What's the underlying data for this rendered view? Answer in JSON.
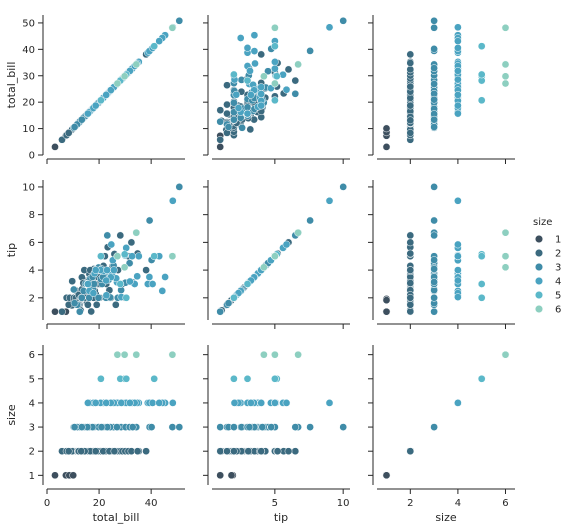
{
  "chart_data": {
    "type": "scatter",
    "variables": [
      "total_bill",
      "tip",
      "size"
    ],
    "hue": "size",
    "legend": {
      "title": "size",
      "position": "right",
      "entries": [
        "1",
        "2",
        "3",
        "4",
        "5",
        "6"
      ]
    },
    "palette": [
      "#3d4f5e",
      "#3b6a7f",
      "#3f8ca8",
      "#4aa3c1",
      "#5bb8c9",
      "#8dcfc0"
    ],
    "axes": {
      "total_bill": {
        "label": "total_bill",
        "lim": [
          0,
          53
        ],
        "ticks": [
          0,
          20,
          40
        ],
        "yticks": [
          0,
          10,
          20,
          30,
          40,
          50
        ]
      },
      "tip": {
        "label": "tip",
        "lim": [
          0.4,
          10.5
        ],
        "ticks": [
          5,
          10
        ],
        "yticks": [
          2,
          4,
          6,
          8,
          10
        ]
      },
      "size": {
        "label": "size",
        "lim": [
          0.6,
          6.4
        ],
        "ticks": [
          2,
          4,
          6
        ],
        "yticks": [
          1,
          2,
          3,
          4,
          5,
          6
        ]
      }
    },
    "points": [
      [
        3.07,
        1.0,
        1
      ],
      [
        7.25,
        1.0,
        1
      ],
      [
        8.58,
        1.92,
        1
      ],
      [
        10.07,
        1.83,
        1
      ],
      [
        5.75,
        1.0,
        2
      ],
      [
        7.51,
        2.0,
        2
      ],
      [
        8.77,
        2.0,
        2
      ],
      [
        9.55,
        1.45,
        2
      ],
      [
        10.34,
        1.66,
        2
      ],
      [
        10.27,
        1.71,
        2
      ],
      [
        10.33,
        2.0,
        2
      ],
      [
        11.02,
        1.98,
        2
      ],
      [
        12.46,
        1.5,
        2
      ],
      [
        12.54,
        2.5,
        2
      ],
      [
        12.9,
        1.1,
        2
      ],
      [
        13.0,
        2.0,
        2
      ],
      [
        13.27,
        2.5,
        2
      ],
      [
        13.81,
        2.0,
        2
      ],
      [
        14.15,
        2.0,
        2
      ],
      [
        14.52,
        2.0,
        2
      ],
      [
        14.78,
        3.23,
        2
      ],
      [
        15.04,
        1.96,
        2
      ],
      [
        15.36,
        1.64,
        2
      ],
      [
        15.69,
        1.5,
        2
      ],
      [
        16.29,
        3.71,
        2
      ],
      [
        16.45,
        2.47,
        2
      ],
      [
        16.97,
        1.01,
        2
      ],
      [
        17.29,
        2.71,
        2
      ],
      [
        17.51,
        3.0,
        2
      ],
      [
        17.92,
        4.08,
        2
      ],
      [
        18.43,
        3.0,
        2
      ],
      [
        18.69,
        2.31,
        2
      ],
      [
        19.44,
        3.0,
        2
      ],
      [
        19.82,
        3.18,
        2
      ],
      [
        20.29,
        3.21,
        2
      ],
      [
        20.9,
        3.5,
        2
      ],
      [
        21.01,
        3.0,
        2
      ],
      [
        22.23,
        5.0,
        2
      ],
      [
        22.76,
        3.0,
        2
      ],
      [
        23.33,
        5.65,
        2
      ],
      [
        24.01,
        2.0,
        2
      ],
      [
        24.55,
        2.0,
        2
      ],
      [
        25.21,
        4.29,
        2
      ],
      [
        26.41,
        1.5,
        2
      ],
      [
        27.28,
        4.0,
        2
      ],
      [
        28.17,
        6.5,
        2
      ],
      [
        28.97,
        3.0,
        2
      ],
      [
        30.06,
        2.0,
        2
      ],
      [
        31.27,
        5.0,
        2
      ],
      [
        32.4,
        6.0,
        2
      ],
      [
        35.26,
        5.0,
        2
      ],
      [
        38.07,
        4.0,
        2
      ],
      [
        12.76,
        2.23,
        2
      ],
      [
        11.35,
        2.5,
        2
      ],
      [
        15.48,
        2.02,
        2
      ],
      [
        16.31,
        2.0,
        2
      ],
      [
        17.26,
        2.74,
        2
      ],
      [
        18.28,
        4.0,
        2
      ],
      [
        19.65,
        3.0,
        2
      ],
      [
        21.7,
        4.3,
        2
      ],
      [
        13.42,
        3.48,
        2
      ],
      [
        14.31,
        4.0,
        2
      ],
      [
        15.81,
        3.16,
        2
      ],
      [
        17.46,
        2.54,
        2
      ],
      [
        19.08,
        1.5,
        2
      ],
      [
        20.23,
        2.01,
        2
      ],
      [
        22.42,
        3.48,
        2
      ],
      [
        12.43,
        1.8,
        2
      ],
      [
        14.73,
        2.2,
        2
      ],
      [
        16.04,
        2.24,
        2
      ],
      [
        18.35,
        2.5,
        2
      ],
      [
        20.45,
        3.0,
        2
      ],
      [
        9.68,
        3.2,
        2
      ],
      [
        11.87,
        1.63,
        2
      ],
      [
        13.39,
        2.61,
        2
      ],
      [
        15.98,
        2.03,
        2
      ],
      [
        17.89,
        2.0,
        2
      ],
      [
        19.49,
        3.51,
        2
      ],
      [
        21.58,
        3.92,
        2
      ],
      [
        23.95,
        2.55,
        2
      ],
      [
        25.89,
        5.16,
        2
      ],
      [
        8.35,
        1.5,
        2
      ],
      [
        12.03,
        1.5,
        2
      ],
      [
        13.94,
        3.06,
        2
      ],
      [
        16.58,
        4.0,
        2
      ],
      [
        18.71,
        4.0,
        2
      ],
      [
        14.48,
        2.0,
        2
      ],
      [
        34.81,
        5.2,
        2
      ],
      [
        12.16,
        2.2,
        2
      ],
      [
        13.13,
        2.0,
        2
      ],
      [
        10.29,
        2.6,
        3
      ],
      [
        14.07,
        2.5,
        3
      ],
      [
        16.66,
        3.4,
        3
      ],
      [
        17.59,
        2.64,
        3
      ],
      [
        18.24,
        3.76,
        3
      ],
      [
        19.77,
        2.0,
        3
      ],
      [
        20.49,
        4.06,
        3
      ],
      [
        21.16,
        3.0,
        3
      ],
      [
        22.49,
        3.5,
        3
      ],
      [
        23.68,
        3.31,
        3
      ],
      [
        24.06,
        3.6,
        3
      ],
      [
        25.56,
        4.34,
        3
      ],
      [
        27.18,
        2.0,
        3
      ],
      [
        28.44,
        2.56,
        3
      ],
      [
        30.14,
        3.09,
        3
      ],
      [
        31.71,
        4.5,
        3
      ],
      [
        34.3,
        6.7,
        3
      ],
      [
        39.42,
        7.58,
        3
      ],
      [
        48.17,
        5.0,
        3
      ],
      [
        50.81,
        10.0,
        3
      ],
      [
        20.65,
        3.35,
        3
      ],
      [
        16.21,
        2.0,
        3
      ],
      [
        15.38,
        3.0,
        3
      ],
      [
        12.6,
        1.0,
        3
      ],
      [
        18.04,
        3.0,
        3
      ],
      [
        22.67,
        2.0,
        3
      ],
      [
        19.81,
        4.19,
        3
      ],
      [
        24.27,
        2.03,
        3
      ],
      [
        32.9,
        3.11,
        3
      ],
      [
        11.59,
        1.5,
        3
      ],
      [
        17.47,
        3.5,
        3
      ],
      [
        21.5,
        3.5,
        3
      ],
      [
        14.83,
        3.02,
        3
      ],
      [
        40.17,
        4.73,
        3
      ],
      [
        15.53,
        3.0,
        3
      ],
      [
        23.17,
        6.5,
        3
      ],
      [
        26.86,
        3.14,
        3
      ],
      [
        20.92,
        4.08,
        3
      ],
      [
        10.59,
        1.61,
        3
      ],
      [
        13.37,
        2.0,
        3
      ],
      [
        24.59,
        3.61,
        4
      ],
      [
        25.29,
        4.71,
        4
      ],
      [
        26.88,
        3.12,
        4
      ],
      [
        35.26,
        5.0,
        4
      ],
      [
        21.58,
        3.92,
        4
      ],
      [
        29.93,
        5.07,
        4
      ],
      [
        30.4,
        5.6,
        4
      ],
      [
        32.68,
        5.0,
        4
      ],
      [
        34.63,
        3.55,
        4
      ],
      [
        38.73,
        3.0,
        4
      ],
      [
        45.35,
        3.5,
        4
      ],
      [
        48.33,
        9.0,
        4
      ],
      [
        20.69,
        5.0,
        4
      ],
      [
        24.71,
        5.85,
        4
      ],
      [
        25.0,
        3.75,
        4
      ],
      [
        28.15,
        3.0,
        4
      ],
      [
        18.29,
        3.76,
        4
      ],
      [
        22.82,
        2.18,
        4
      ],
      [
        26.59,
        3.41,
        4
      ],
      [
        33.68,
        3.0,
        4
      ],
      [
        39.33,
        3.5,
        4
      ],
      [
        44.3,
        2.5,
        4
      ],
      [
        16.27,
        2.5,
        4
      ],
      [
        20.53,
        4.0,
        4
      ],
      [
        23.1,
        4.0,
        4
      ],
      [
        27.05,
        5.0,
        4
      ],
      [
        31.85,
        3.18,
        4
      ],
      [
        17.81,
        2.34,
        4
      ],
      [
        25.71,
        4.0,
        4
      ],
      [
        40.55,
        3.0,
        4
      ],
      [
        43.11,
        5.0,
        4
      ],
      [
        15.69,
        3.0,
        4
      ],
      [
        24.52,
        3.48,
        4
      ],
      [
        28.55,
        2.05,
        4
      ],
      [
        22.75,
        3.25,
        4
      ],
      [
        18.71,
        4.0,
        4
      ],
      [
        29.85,
        5.14,
        5
      ],
      [
        28.15,
        3.0,
        5
      ],
      [
        30.46,
        2.0,
        5
      ],
      [
        20.69,
        5.0,
        5
      ],
      [
        41.19,
        5.0,
        5
      ],
      [
        27.05,
        5.0,
        6
      ],
      [
        29.8,
        4.2,
        6
      ],
      [
        34.3,
        6.7,
        6
      ],
      [
        48.17,
        5.0,
        6
      ]
    ]
  }
}
